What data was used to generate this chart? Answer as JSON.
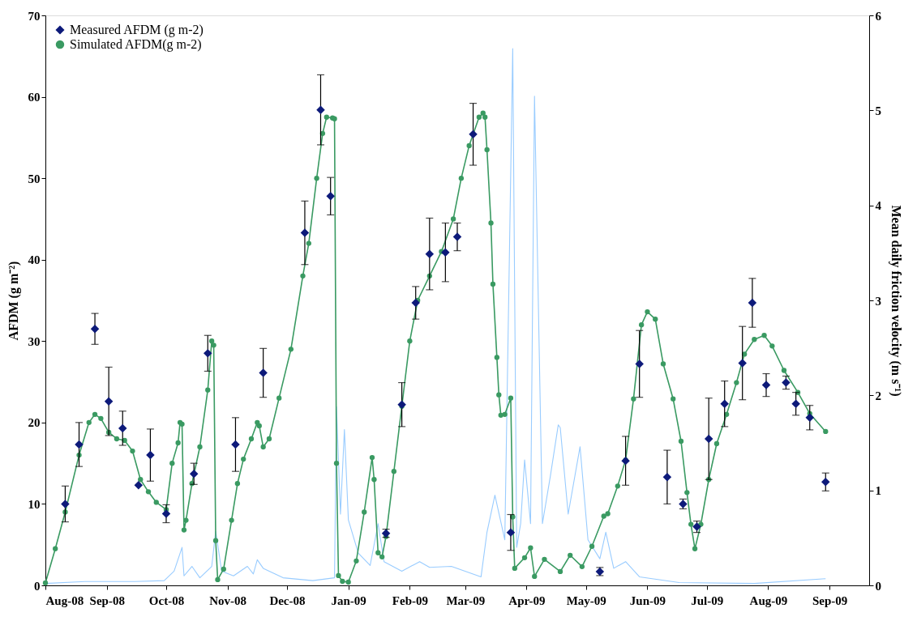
{
  "chart_data": {
    "type": "scatter",
    "ylabel": "AFDM (g m⁻²)",
    "y2label": "Mean daily friction velocity (m s⁻¹)",
    "xlim": [
      "2008-08-01",
      "2009-09-21"
    ],
    "xticks": [
      {
        "value": "2008-08-01",
        "label": "Aug-08"
      },
      {
        "value": "2008-09-01",
        "label": "Sep-08"
      },
      {
        "value": "2008-10-01",
        "label": "Oct-08"
      },
      {
        "value": "2008-11-01",
        "label": "Nov-08"
      },
      {
        "value": "2008-12-01",
        "label": "Dec-08"
      },
      {
        "value": "2009-01-01",
        "label": "Jan-09"
      },
      {
        "value": "2009-02-01",
        "label": "Feb-09"
      },
      {
        "value": "2009-03-01",
        "label": "Mar-09"
      },
      {
        "value": "2009-04-01",
        "label": "Apr-09"
      },
      {
        "value": "2009-05-01",
        "label": "May-09"
      },
      {
        "value": "2009-06-01",
        "label": "Jun-09"
      },
      {
        "value": "2009-07-01",
        "label": "Jul-09"
      },
      {
        "value": "2009-08-01",
        "label": "Aug-09"
      },
      {
        "value": "2009-09-01",
        "label": "Sep-09"
      }
    ],
    "ylim": [
      0,
      70
    ],
    "yticks": [
      0,
      10,
      20,
      30,
      40,
      50,
      60,
      70
    ],
    "y2lim": [
      0,
      6
    ],
    "y2ticks": [
      0,
      1,
      2,
      3,
      4,
      5,
      6
    ],
    "grid": false,
    "legend": "top left",
    "series": [
      {
        "type": "line",
        "axis": "y2",
        "color": "#99ccff",
        "marker": "none",
        "x": [
          "2008-08-01",
          "2008-08-21",
          "2008-09-15",
          "2008-09-30",
          "2008-10-05",
          "2008-10-09",
          "2008-10-10",
          "2008-10-14",
          "2008-10-18",
          "2008-10-24",
          "2008-10-26",
          "2008-10-29",
          "2008-11-04",
          "2008-11-11",
          "2008-11-14",
          "2008-11-16",
          "2008-11-19",
          "2008-11-29",
          "2008-12-14",
          "2008-12-25",
          "2008-12-26",
          "2008-12-28",
          "2008-12-30",
          "2009-01-01",
          "2009-01-06",
          "2009-01-12",
          "2009-01-16",
          "2009-01-19",
          "2009-01-28",
          "2009-02-06",
          "2009-02-11",
          "2009-02-22",
          "2009-03-09",
          "2009-03-12",
          "2009-03-16",
          "2009-03-21",
          "2009-03-25",
          "2009-03-27",
          "2009-03-29",
          "2009-03-31",
          "2009-04-03",
          "2009-04-05",
          "2009-04-09",
          "2009-04-13",
          "2009-04-17",
          "2009-04-18",
          "2009-04-22",
          "2009-04-28",
          "2009-05-02",
          "2009-05-08",
          "2009-05-11",
          "2009-05-15",
          "2009-05-21",
          "2009-05-28",
          "2009-06-17",
          "2009-07-25",
          "2009-08-30"
        ],
        "values": [
          0.02,
          0.04,
          0.04,
          0.05,
          0.15,
          0.4,
          0.1,
          0.2,
          0.08,
          0.2,
          0.57,
          0.15,
          0.1,
          0.2,
          0.12,
          0.27,
          0.18,
          0.08,
          0.05,
          0.08,
          1.88,
          0.75,
          1.64,
          0.69,
          0.34,
          0.21,
          0.65,
          0.25,
          0.15,
          0.25,
          0.19,
          0.2,
          0.09,
          0.56,
          0.95,
          0.48,
          5.65,
          0.4,
          0.65,
          1.32,
          0.65,
          5.15,
          0.65,
          1.15,
          1.69,
          1.66,
          0.75,
          1.46,
          0.48,
          0.28,
          0.56,
          0.18,
          0.25,
          0.09,
          0.03,
          0.02,
          0.07
        ]
      },
      {
        "type": "line",
        "name": "Simulated AFDM(g m-2)",
        "color": "#3a9a62",
        "marker": "circle",
        "x": [
          "2008-08-01",
          "2008-08-06",
          "2008-08-11",
          "2008-08-18",
          "2008-08-23",
          "2008-08-26",
          "2008-08-29",
          "2008-09-02",
          "2008-09-06",
          "2008-09-10",
          "2008-09-14",
          "2008-09-18",
          "2008-09-22",
          "2008-09-26",
          "2008-10-01",
          "2008-10-04",
          "2008-10-07",
          "2008-10-08",
          "2008-10-09",
          "2008-10-10",
          "2008-10-11",
          "2008-10-14",
          "2008-10-18",
          "2008-10-22",
          "2008-10-24",
          "2008-10-25",
          "2008-10-26",
          "2008-10-27",
          "2008-10-30",
          "2008-11-03",
          "2008-11-06",
          "2008-11-09",
          "2008-11-13",
          "2008-11-16",
          "2008-11-17",
          "2008-11-19",
          "2008-11-22",
          "2008-11-27",
          "2008-12-03",
          "2008-12-09",
          "2008-12-12",
          "2008-12-16",
          "2008-12-19",
          "2008-12-21",
          "2008-12-24",
          "2008-12-25",
          "2008-12-26",
          "2008-12-27",
          "2008-12-29",
          "2009-01-01",
          "2009-01-05",
          "2009-01-09",
          "2009-01-13",
          "2009-01-14",
          "2009-01-16",
          "2009-01-18",
          "2009-01-20",
          "2009-01-24",
          "2009-01-28",
          "2009-02-01",
          "2009-02-05",
          "2009-02-11",
          "2009-02-17",
          "2009-02-23",
          "2009-02-27",
          "2009-03-03",
          "2009-03-08",
          "2009-03-10",
          "2009-03-11",
          "2009-03-12",
          "2009-03-14",
          "2009-03-15",
          "2009-03-17",
          "2009-03-18",
          "2009-03-19",
          "2009-03-21",
          "2009-03-24",
          "2009-03-25",
          "2009-03-26",
          "2009-03-31",
          "2009-04-03",
          "2009-04-05",
          "2009-04-10",
          "2009-04-18",
          "2009-04-23",
          "2009-04-29",
          "2009-05-04",
          "2009-05-10",
          "2009-05-12",
          "2009-05-17",
          "2009-05-21",
          "2009-05-25",
          "2009-05-29",
          "2009-06-01",
          "2009-06-05",
          "2009-06-09",
          "2009-06-14",
          "2009-06-18",
          "2009-06-21",
          "2009-06-23",
          "2009-06-25",
          "2009-06-28",
          "2009-07-02",
          "2009-07-06",
          "2009-07-11",
          "2009-07-16",
          "2009-07-20",
          "2009-07-25",
          "2009-07-30",
          "2009-08-03",
          "2009-08-09",
          "2009-08-16",
          "2009-08-22",
          "2009-08-30"
        ],
        "values": [
          0.3,
          4.5,
          9,
          16,
          20,
          21,
          20.5,
          18.8,
          18,
          17.8,
          16.5,
          13,
          11.5,
          10.2,
          9.3,
          15,
          17.5,
          20,
          19.8,
          6.8,
          8,
          12.5,
          17,
          24,
          30,
          29.5,
          5.5,
          0.7,
          2,
          8,
          12.5,
          15.5,
          18,
          20,
          19.6,
          17,
          18,
          23,
          29,
          38,
          42,
          50,
          55.5,
          57.5,
          57.4,
          57.3,
          15,
          1.2,
          0.5,
          0.4,
          3,
          9,
          15.7,
          13,
          4,
          3.5,
          6,
          14,
          22,
          30,
          35,
          38,
          41,
          45,
          50,
          54,
          57.5,
          58,
          57.5,
          53.5,
          44.5,
          37,
          28,
          23.4,
          20.9,
          21,
          23,
          8.4,
          2.1,
          3.4,
          4.6,
          1.1,
          3.2,
          1.7,
          3.7,
          2.3,
          4.8,
          8.5,
          8.8,
          12.2,
          15.4,
          22.9,
          32,
          33.6,
          32.7,
          27.2,
          22.9,
          17.7,
          11.4,
          7.5,
          4.5,
          7.5,
          13,
          17.4,
          21,
          24.9,
          28.4,
          30.2,
          30.7,
          29.4,
          26.4,
          23.7,
          21.1,
          18.9
        ]
      },
      {
        "name": "Measured AFDM (g m-2)",
        "color": "#0d1a7a",
        "marker": "diamond",
        "x": [
          "2008-08-11",
          "2008-08-18",
          "2008-08-26",
          "2008-09-02",
          "2008-09-09",
          "2008-09-17",
          "2008-09-23",
          "2008-10-01",
          "2008-10-15",
          "2008-10-22",
          "2008-11-05",
          "2008-11-19",
          "2008-12-10",
          "2008-12-18",
          "2008-12-23",
          "2009-01-20",
          "2009-01-28",
          "2009-02-04",
          "2009-02-11",
          "2009-02-19",
          "2009-02-25",
          "2009-03-05",
          "2009-03-24",
          "2009-05-08",
          "2009-05-21",
          "2009-05-28",
          "2009-06-11",
          "2009-06-19",
          "2009-06-26",
          "2009-07-02",
          "2009-07-10",
          "2009-07-19",
          "2009-07-24",
          "2009-07-31",
          "2009-08-10",
          "2009-08-15",
          "2009-08-22",
          "2009-08-30"
        ],
        "values": [
          10,
          17.3,
          31.5,
          22.6,
          19.3,
          12.3,
          16,
          8.8,
          13.7,
          28.5,
          17.3,
          26.1,
          43.3,
          58.4,
          47.8,
          6.4,
          22.2,
          34.7,
          40.7,
          40.9,
          42.8,
          55.4,
          6.5,
          1.7,
          15.3,
          27.2,
          13.3,
          10,
          7.2,
          18,
          22.3,
          27.3,
          34.7,
          24.6,
          24.9,
          22.3,
          20.6,
          12.7
        ],
        "errors": [
          2.2,
          2.7,
          1.9,
          4.2,
          2.1,
          null,
          3.2,
          1.1,
          1.3,
          2.2,
          3.3,
          3,
          3.9,
          4.3,
          2.3,
          0.5,
          2.7,
          2,
          4.4,
          3.6,
          1.7,
          3.8,
          2.2,
          0.5,
          3,
          4.1,
          3.3,
          0.6,
          0.7,
          5,
          2.8,
          4.5,
          3,
          1.4,
          0.8,
          1.4,
          1.5,
          1.1
        ]
      }
    ]
  }
}
